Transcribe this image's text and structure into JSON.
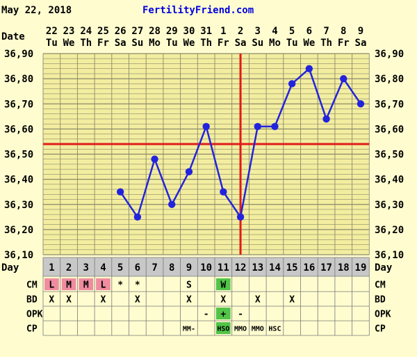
{
  "header": {
    "date": "May 22, 2018",
    "site": "FertilityFriend.com"
  },
  "colors": {
    "background": "#fffdd0",
    "plot_bg": "#f3eda0",
    "grid": "#8a8a6a",
    "line": "#2323dd",
    "coverline": "#e01b1b",
    "grey_band": "#c8c8c8",
    "pink": "#f08ca0",
    "green": "#52c448"
  },
  "labels": {
    "date_row": "Date",
    "day_row": "Day",
    "row_cm": "CM",
    "row_bd": "BD",
    "row_opk": "OPK",
    "row_cp": "CP"
  },
  "chart_data": {
    "type": "line",
    "dates": [
      "22",
      "23",
      "24",
      "25",
      "26",
      "27",
      "28",
      "29",
      "30",
      "31",
      "1",
      "2",
      "3",
      "4",
      "5",
      "6",
      "7",
      "8",
      "9"
    ],
    "weekdays": [
      "Tu",
      "We",
      "Th",
      "Fr",
      "Sa",
      "Su",
      "Mo",
      "Tu",
      "We",
      "Th",
      "Fr",
      "Sa",
      "Su",
      "Mo",
      "Tu",
      "We",
      "Th",
      "Fr",
      "Sa"
    ],
    "days": [
      "1",
      "2",
      "3",
      "4",
      "5",
      "6",
      "7",
      "8",
      "9",
      "10",
      "11",
      "12",
      "13",
      "14",
      "15",
      "16",
      "17",
      "18",
      "19"
    ],
    "temperatures": [
      null,
      null,
      null,
      null,
      36.35,
      36.25,
      36.48,
      36.3,
      36.43,
      36.61,
      36.35,
      36.25,
      36.61,
      36.61,
      36.78,
      36.84,
      36.64,
      36.8,
      36.7
    ],
    "y_ticks": [
      "36,90",
      "36,80",
      "36,70",
      "36,60",
      "36,50",
      "36,40",
      "36,30",
      "36,20",
      "36,10"
    ],
    "ylim": [
      36.1,
      36.9
    ],
    "coverline": 36.54,
    "ovulation_day": 12,
    "grid": true
  },
  "rows": {
    "cm": [
      "L",
      "M",
      "M",
      "L",
      "*",
      "*",
      "",
      "",
      "S",
      "",
      "W",
      "",
      "",
      "",
      "",
      "",
      "",
      "",
      ""
    ],
    "cm_highlight": [
      "pink",
      "pink",
      "pink",
      "pink",
      "",
      "",
      "",
      "",
      "",
      "",
      "green",
      "",
      "",
      "",
      "",
      "",
      "",
      "",
      ""
    ],
    "bd": [
      "X",
      "X",
      "",
      "X",
      "",
      "X",
      "",
      "",
      "X",
      "",
      "X",
      "",
      "X",
      "",
      "X",
      "",
      "",
      "",
      ""
    ],
    "opk": [
      "",
      "",
      "",
      "",
      "",
      "",
      "",
      "",
      "",
      "-",
      "+",
      "-",
      "",
      "",
      "",
      "",
      "",
      "",
      ""
    ],
    "opk_highlight": [
      "",
      "",
      "",
      "",
      "",
      "",
      "",
      "",
      "",
      "",
      "green",
      "",
      "",
      "",
      "",
      "",
      "",
      "",
      ""
    ],
    "cp": [
      "",
      "",
      "",
      "",
      "",
      "",
      "",
      "",
      "MM-",
      "",
      "HSO",
      "MMO",
      "MMO",
      "HSC",
      "",
      "",
      "",
      "",
      ""
    ],
    "cp_highlight": [
      "",
      "",
      "",
      "",
      "",
      "",
      "",
      "",
      "",
      "",
      "green",
      "",
      "",
      "",
      "",
      "",
      "",
      "",
      ""
    ]
  }
}
